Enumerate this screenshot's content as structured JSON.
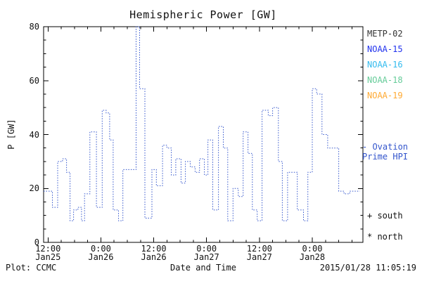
{
  "chart_data": {
    "type": "line",
    "title": "Hemispheric Power [GW]",
    "xlabel": "Date and Time",
    "ylabel": "P [GW]",
    "ylim": [
      0,
      80
    ],
    "yticks": [
      0,
      20,
      40,
      60,
      80
    ],
    "xlim_hours": [
      -1,
      71.5
    ],
    "minor_tick_hours": 3,
    "grid": false,
    "xticks": [
      {
        "hour": 0,
        "time": "12:00",
        "date": "Jan25"
      },
      {
        "hour": 12,
        "time": "0:00",
        "date": "Jan26"
      },
      {
        "hour": 24,
        "time": "12:00",
        "date": "Jan26"
      },
      {
        "hour": 36,
        "time": "0:00",
        "date": "Jan27"
      },
      {
        "hour": 48,
        "time": "12:00",
        "date": "Jan27"
      },
      {
        "hour": 60,
        "time": "0:00",
        "date": "Jan28"
      }
    ],
    "series": [
      {
        "name": "Ovation Prime HPI",
        "color": "#3355cc",
        "line_style": "dotted-step",
        "points": [
          [
            -1,
            19
          ],
          [
            1,
            13
          ],
          [
            2.2,
            30
          ],
          [
            3.3,
            31
          ],
          [
            4.2,
            26
          ],
          [
            5,
            8
          ],
          [
            5.8,
            12
          ],
          [
            6.8,
            13
          ],
          [
            7.6,
            8
          ],
          [
            8.3,
            18
          ],
          [
            9.5,
            41
          ],
          [
            11,
            13
          ],
          [
            12.3,
            49
          ],
          [
            13.2,
            48
          ],
          [
            14,
            38
          ],
          [
            14.8,
            12
          ],
          [
            16,
            8
          ],
          [
            17,
            27
          ],
          [
            18.5,
            27
          ],
          [
            20,
            80
          ],
          [
            20.8,
            57
          ],
          [
            22,
            9
          ],
          [
            23.2,
            9
          ],
          [
            23.6,
            27
          ],
          [
            24.6,
            21
          ],
          [
            26,
            36
          ],
          [
            27,
            35
          ],
          [
            28,
            25
          ],
          [
            29,
            31
          ],
          [
            30.2,
            22
          ],
          [
            31.2,
            30
          ],
          [
            32.3,
            28
          ],
          [
            33.4,
            26
          ],
          [
            34.4,
            31
          ],
          [
            35.5,
            25
          ],
          [
            36.3,
            38
          ],
          [
            37.4,
            12
          ],
          [
            38.7,
            43
          ],
          [
            39.8,
            35
          ],
          [
            40.8,
            8
          ],
          [
            42,
            20
          ],
          [
            43.2,
            17
          ],
          [
            44.3,
            41
          ],
          [
            45.4,
            33
          ],
          [
            46.4,
            12
          ],
          [
            47.5,
            8
          ],
          [
            48.6,
            49
          ],
          [
            50,
            47
          ],
          [
            51,
            50
          ],
          [
            52.3,
            30
          ],
          [
            53.2,
            8
          ],
          [
            54.4,
            26
          ],
          [
            55.5,
            26
          ],
          [
            56.6,
            12
          ],
          [
            58,
            8
          ],
          [
            59,
            26
          ],
          [
            60,
            57
          ],
          [
            61,
            55
          ],
          [
            62.2,
            40
          ],
          [
            63.5,
            35
          ],
          [
            64.6,
            35
          ],
          [
            66,
            19
          ],
          [
            67.2,
            18
          ],
          [
            68.5,
            19
          ],
          [
            70,
            19
          ]
        ]
      }
    ]
  },
  "legend": {
    "items": [
      {
        "label": "METP-02",
        "color": "#333333"
      },
      {
        "label": "NOAA-15",
        "color": "#2233ee"
      },
      {
        "label": "NOAA-16",
        "color": "#33bbee"
      },
      {
        "label": "NOAA-18",
        "color": "#66cc99"
      },
      {
        "label": "NOAA-19",
        "color": "#ffaa33"
      }
    ],
    "ovation_line1": "- Ovation",
    "ovation_line2": "Prime HPI",
    "ovation_color": "#3355cc",
    "south_label": "+ south",
    "north_label": "* north"
  },
  "footer": {
    "credit": "Plot: CCMC",
    "timestamp": "2015/01/28 11:05:19"
  }
}
